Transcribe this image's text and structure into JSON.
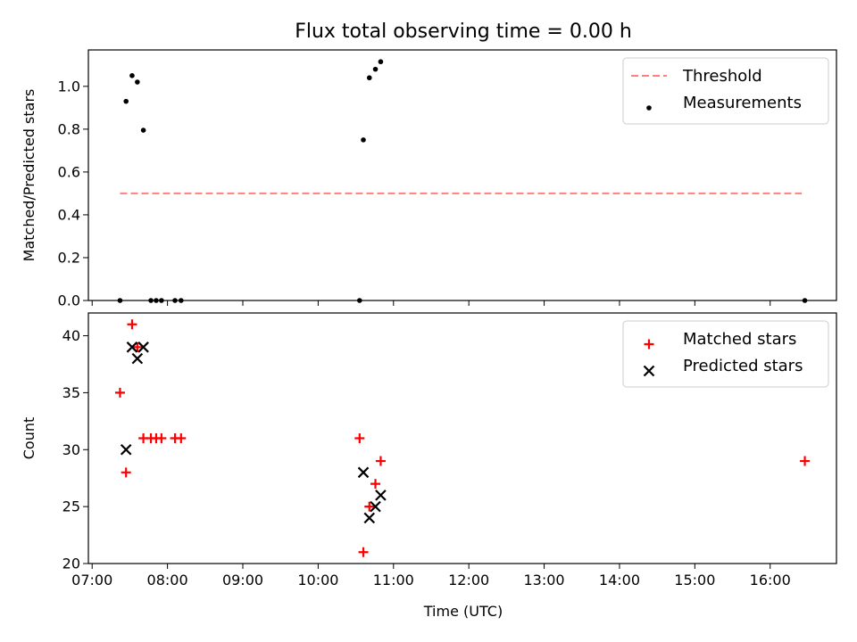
{
  "chart_data": {
    "title": "Flux total observing time = 0.00 h",
    "xlabel": "Time (UTC)",
    "xtick_labels": [
      "07:00",
      "08:00",
      "09:00",
      "10:00",
      "11:00",
      "12:00",
      "13:00",
      "14:00",
      "15:00",
      "16:00"
    ],
    "xtick_hours": [
      7,
      8,
      9,
      10,
      11,
      12,
      13,
      14,
      15,
      16
    ],
    "xlim_hours": [
      6.95,
      16.88
    ],
    "panels": [
      {
        "type": "scatter",
        "ylabel": "Matched/Predicted stars",
        "ylim": [
          0,
          1.17
        ],
        "yticks": [
          0,
          0.2,
          0.4,
          0.6,
          0.8,
          1.0
        ],
        "ytick_labels": [
          "0.0",
          "0.2",
          "0.4",
          "0.6",
          "0.8",
          "1.0"
        ],
        "legend_position": "top-right",
        "threshold": {
          "name": "Threshold",
          "value": 0.5,
          "x_range_hours": [
            7.37,
            16.42
          ],
          "color": "#ff7f7f",
          "style": "dashed"
        },
        "series": [
          {
            "name": "Measurements",
            "marker": "dot",
            "color": "#000000",
            "points": [
              {
                "x": 7.37,
                "y": 0.0
              },
              {
                "x": 7.45,
                "y": 0.93
              },
              {
                "x": 7.53,
                "y": 1.05
              },
              {
                "x": 7.6,
                "y": 1.02
              },
              {
                "x": 7.68,
                "y": 0.795
              },
              {
                "x": 7.78,
                "y": 0.0
              },
              {
                "x": 7.85,
                "y": 0.0
              },
              {
                "x": 7.92,
                "y": 0.0
              },
              {
                "x": 8.1,
                "y": 0.0
              },
              {
                "x": 8.18,
                "y": 0.0
              },
              {
                "x": 10.55,
                "y": 0.0
              },
              {
                "x": 10.6,
                "y": 0.75
              },
              {
                "x": 10.68,
                "y": 1.04
              },
              {
                "x": 10.76,
                "y": 1.08
              },
              {
                "x": 10.83,
                "y": 1.115
              },
              {
                "x": 16.46,
                "y": 0.0
              }
            ]
          }
        ]
      },
      {
        "type": "scatter",
        "ylabel": "Count",
        "ylim": [
          20,
          42
        ],
        "yticks": [
          20,
          25,
          30,
          35,
          40
        ],
        "ytick_labels": [
          "20",
          "25",
          "30",
          "35",
          "40"
        ],
        "legend_position": "top-right",
        "series": [
          {
            "name": "Matched stars",
            "marker": "plus",
            "color": "#ff0000",
            "points": [
              {
                "x": 7.37,
                "y": 35
              },
              {
                "x": 7.45,
                "y": 28
              },
              {
                "x": 7.53,
                "y": 41
              },
              {
                "x": 7.6,
                "y": 39
              },
              {
                "x": 7.68,
                "y": 31
              },
              {
                "x": 7.78,
                "y": 31
              },
              {
                "x": 7.85,
                "y": 31
              },
              {
                "x": 7.92,
                "y": 31
              },
              {
                "x": 8.1,
                "y": 31
              },
              {
                "x": 8.18,
                "y": 31
              },
              {
                "x": 10.55,
                "y": 31
              },
              {
                "x": 10.6,
                "y": 21
              },
              {
                "x": 10.68,
                "y": 25
              },
              {
                "x": 10.76,
                "y": 27
              },
              {
                "x": 10.83,
                "y": 29
              },
              {
                "x": 16.46,
                "y": 29
              }
            ]
          },
          {
            "name": "Predicted stars",
            "marker": "x",
            "color": "#000000",
            "points": [
              {
                "x": 7.45,
                "y": 30
              },
              {
                "x": 7.53,
                "y": 39
              },
              {
                "x": 7.6,
                "y": 38
              },
              {
                "x": 7.68,
                "y": 39
              },
              {
                "x": 10.6,
                "y": 28
              },
              {
                "x": 10.68,
                "y": 24
              },
              {
                "x": 10.76,
                "y": 25
              },
              {
                "x": 10.83,
                "y": 26
              }
            ]
          }
        ]
      }
    ]
  }
}
